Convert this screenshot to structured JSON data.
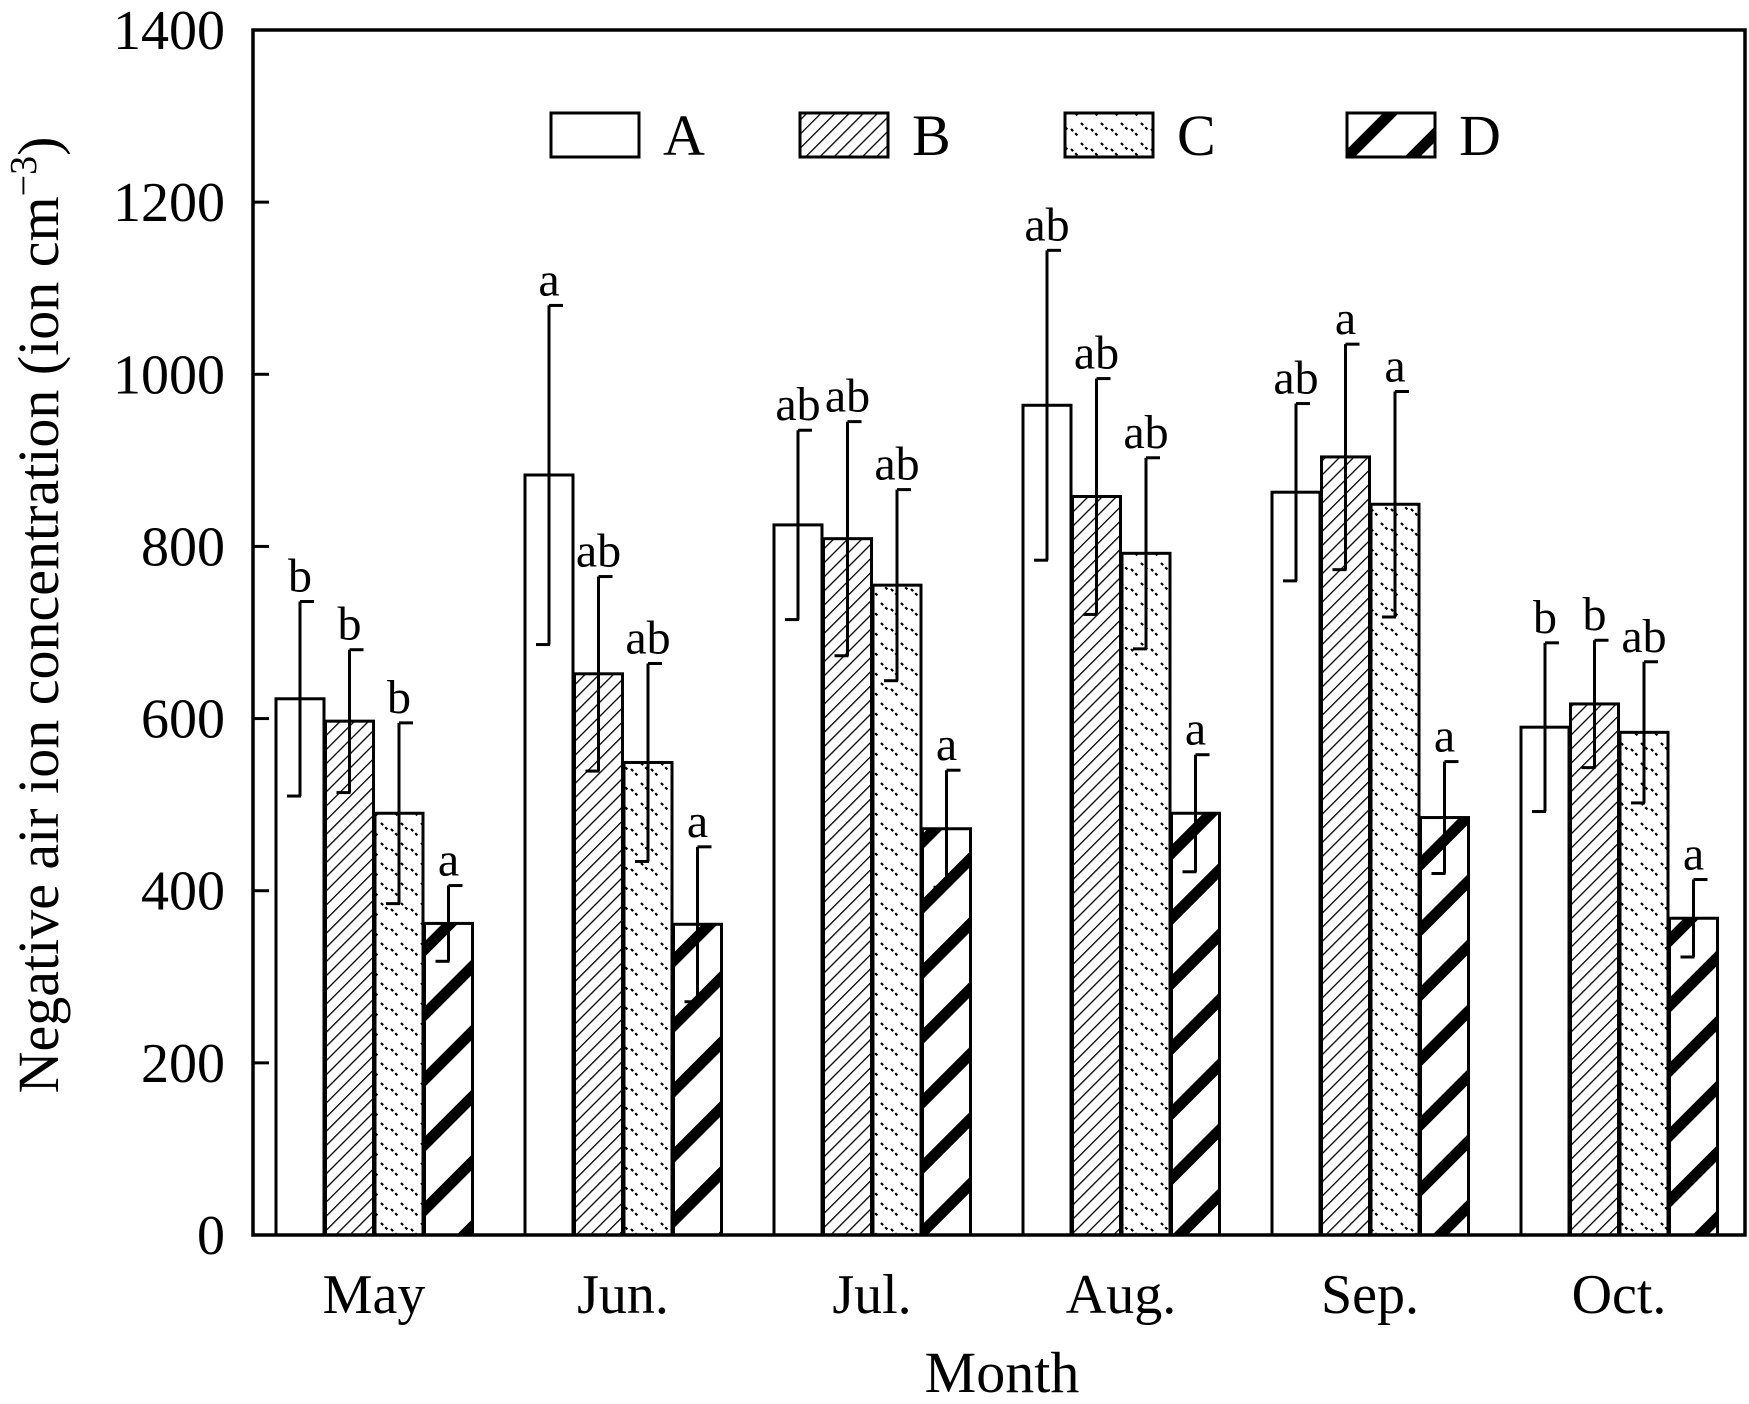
{
  "chart_data": {
    "type": "bar",
    "xlabel": "Month",
    "ylabel_main": "Negative air ion concentration (ion cm",
    "ylabel_sup": "−3",
    "ylabel_close": ")",
    "ylim": [
      0,
      1400
    ],
    "yticks": [
      0,
      200,
      400,
      600,
      800,
      1000,
      1200,
      1400
    ],
    "categories": [
      "May",
      "Jun.",
      "Jul.",
      "Aug.",
      "Sep.",
      "Oct."
    ],
    "legend_position": "top",
    "series": [
      {
        "name": "A",
        "pattern": "blank",
        "values": [
          623,
          883,
          825,
          964,
          863,
          590
        ],
        "error": [
          113,
          197,
          110,
          180,
          103,
          98
        ],
        "significance": [
          "b",
          "a",
          "ab",
          "ab",
          "ab",
          "b"
        ]
      },
      {
        "name": "B",
        "pattern": "diagonal-hatch",
        "values": [
          597,
          652,
          809,
          858,
          904,
          617
        ],
        "error": [
          83,
          113,
          136,
          137,
          131,
          74
        ],
        "significance": [
          "b",
          "ab",
          "ab",
          "ab",
          "a",
          "b"
        ]
      },
      {
        "name": "C",
        "pattern": "dotted-diagonal",
        "values": [
          490,
          549,
          755,
          792,
          849,
          584
        ],
        "error": [
          105,
          115,
          111,
          111,
          131,
          82
        ],
        "significance": [
          "b",
          "ab",
          "ab",
          "ab",
          "a",
          "ab"
        ]
      },
      {
        "name": "D",
        "pattern": "bold-diagonal",
        "values": [
          362,
          361,
          472,
          490,
          485,
          368
        ],
        "error": [
          44,
          90,
          68,
          68,
          65,
          45
        ],
        "significance": [
          "a",
          "a",
          "a",
          "a",
          "a",
          "a"
        ]
      }
    ],
    "colors": {
      "axis": "#000000",
      "bar_stroke": "#000000",
      "bar_fill": "#ffffff"
    }
  }
}
